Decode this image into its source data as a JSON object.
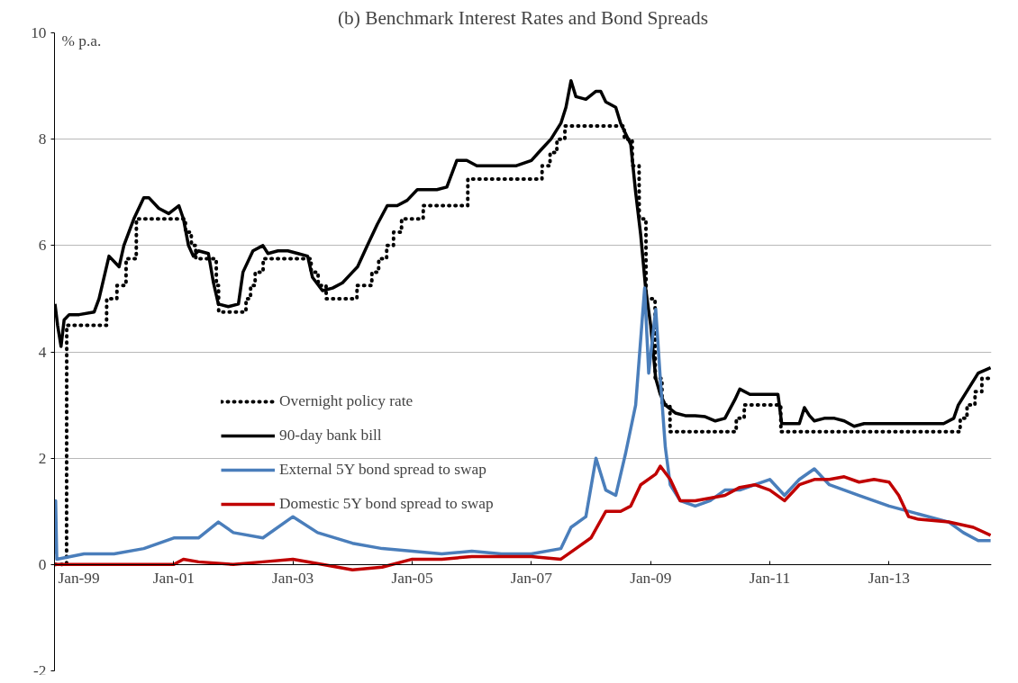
{
  "chart_data": {
    "type": "line",
    "title": "(b) Benchmark Interest Rates and Bond Spreads",
    "ylabel": "% p.a.",
    "xlim": [
      "1999-01-01",
      "2014-09-20"
    ],
    "xticks": [
      {
        "value": "1999-01-01",
        "label": "Jan-99"
      },
      {
        "value": "2001-01-01",
        "label": "Jan-01"
      },
      {
        "value": "2003-01-01",
        "label": "Jan-03"
      },
      {
        "value": "2005-01-01",
        "label": "Jan-05"
      },
      {
        "value": "2007-01-01",
        "label": "Jan-07"
      },
      {
        "value": "2009-01-01",
        "label": "Jan-09"
      },
      {
        "value": "2011-01-01",
        "label": "Jan-11"
      },
      {
        "value": "2013-01-01",
        "label": "Jan-13"
      }
    ],
    "ylim": [
      -2,
      10
    ],
    "yticks": [
      -2,
      0,
      2,
      4,
      6,
      8,
      10
    ],
    "grid": "y",
    "legend": "center",
    "series": [
      {
        "name": "Overnight policy rate",
        "color": "#000000",
        "line_style": "dotted",
        "x": [
          "1999-01-04",
          "1999-03-16",
          "1999-03-17",
          "1999-11-16",
          "1999-11-17",
          "2000-01-18",
          "2000-01-19",
          "2000-03-14",
          "2000-03-15",
          "2000-05-16",
          "2000-05-17",
          "2001-03-13",
          "2001-03-14",
          "2001-04-18",
          "2001-04-19",
          "2001-05-15",
          "2001-05-16",
          "2001-09-18",
          "2001-09-19",
          "2001-10-02",
          "2001-10-03",
          "2002-03-19",
          "2002-03-20",
          "2002-04-16",
          "2002-04-17",
          "2002-05-14",
          "2002-05-15",
          "2002-07-02",
          "2002-07-03",
          "2003-04-22",
          "2003-04-23",
          "2003-06-04",
          "2003-06-05",
          "2003-07-23",
          "2003-07-24",
          "2004-01-28",
          "2004-01-29",
          "2004-04-28",
          "2004-04-29",
          "2004-06-09",
          "2004-06-10",
          "2004-07-28",
          "2004-07-29",
          "2004-09-08",
          "2004-09-09",
          "2004-10-27",
          "2004-10-28",
          "2005-03-09",
          "2005-03-10",
          "2005-12-07",
          "2005-12-08",
          "2007-03-07",
          "2007-03-08",
          "2007-04-25",
          "2007-04-26",
          "2007-06-06",
          "2007-06-07",
          "2007-07-25",
          "2007-07-26",
          "2008-07-23",
          "2008-07-24",
          "2008-09-10",
          "2008-09-11",
          "2008-10-22",
          "2008-10-23",
          "2008-12-03",
          "2008-12-04",
          "2009-01-28",
          "2009-01-29",
          "2009-03-11",
          "2009-03-12",
          "2009-04-29",
          "2009-04-30",
          "2010-06-09",
          "2010-06-10",
          "2010-07-28",
          "2010-07-29",
          "2011-03-09",
          "2011-03-10",
          "2014-03-12",
          "2014-03-13",
          "2014-04-23",
          "2014-04-24",
          "2014-06-11",
          "2014-06-12",
          "2014-07-23",
          "2014-07-24",
          "2014-09-15"
        ],
        "values": [
          0,
          0,
          4.5,
          4.5,
          5.0,
          5.0,
          5.25,
          5.25,
          5.75,
          5.75,
          6.5,
          6.5,
          6.25,
          6.25,
          6.0,
          6.0,
          5.75,
          5.75,
          5.25,
          5.25,
          4.75,
          4.75,
          5.0,
          5.0,
          5.25,
          5.25,
          5.5,
          5.5,
          5.75,
          5.75,
          5.5,
          5.5,
          5.25,
          5.25,
          5.0,
          5.0,
          5.25,
          5.25,
          5.5,
          5.5,
          5.75,
          5.75,
          6.0,
          6.0,
          6.25,
          6.25,
          6.5,
          6.5,
          6.75,
          6.75,
          7.25,
          7.25,
          7.5,
          7.5,
          7.75,
          7.75,
          8.0,
          8.0,
          8.25,
          8.25,
          8.0,
          8.0,
          7.5,
          7.5,
          6.5,
          6.5,
          5.0,
          5.0,
          3.5,
          3.5,
          3.0,
          3.0,
          2.5,
          2.5,
          2.75,
          2.75,
          3.0,
          3.0,
          2.5,
          2.5,
          2.75,
          2.75,
          3.0,
          3.0,
          3.25,
          3.25,
          3.5,
          3.5
        ]
      },
      {
        "name": "90-day bank bill",
        "color": "#000000",
        "line_style": "solid",
        "x": [
          "1999-01-04",
          "1999-01-20",
          "1999-02-10",
          "1999-03-01",
          "1999-04-01",
          "1999-06-01",
          "1999-09-01",
          "1999-10-01",
          "1999-12-01",
          "2000-02-01",
          "2000-03-01",
          "2000-05-01",
          "2000-07-01",
          "2000-08-01",
          "2000-10-01",
          "2000-12-01",
          "2001-02-01",
          "2001-03-01",
          "2001-04-01",
          "2001-05-01",
          "2001-06-01",
          "2001-08-01",
          "2001-09-01",
          "2001-10-01",
          "2001-12-01",
          "2002-02-01",
          "2002-03-01",
          "2002-05-01",
          "2002-07-01",
          "2002-08-01",
          "2002-10-01",
          "2002-12-01",
          "2003-02-01",
          "2003-04-01",
          "2003-05-01",
          "2003-07-01",
          "2003-09-01",
          "2003-11-01",
          "2004-01-01",
          "2004-02-01",
          "2004-04-01",
          "2004-06-01",
          "2004-08-01",
          "2004-10-01",
          "2004-12-01",
          "2005-02-01",
          "2005-04-01",
          "2005-06-01",
          "2005-08-01",
          "2005-10-01",
          "2005-12-01",
          "2006-02-01",
          "2006-06-01",
          "2006-10-01",
          "2007-01-01",
          "2007-03-01",
          "2007-05-01",
          "2007-07-01",
          "2007-08-01",
          "2007-09-01",
          "2007-10-01",
          "2007-12-01",
          "2008-02-01",
          "2008-03-01",
          "2008-04-01",
          "2008-06-01",
          "2008-07-01",
          "2008-08-01",
          "2008-09-01",
          "2008-10-01",
          "2008-11-01",
          "2008-12-01",
          "2009-01-01",
          "2009-02-01",
          "2009-03-01",
          "2009-04-01",
          "2009-06-01",
          "2009-08-01",
          "2009-10-01",
          "2009-12-01",
          "2010-02-01",
          "2010-04-01",
          "2010-06-01",
          "2010-07-01",
          "2010-09-01",
          "2010-11-01",
          "2011-01-01",
          "2011-02-20",
          "2011-03-15",
          "2011-05-01",
          "2011-07-01",
          "2011-08-01",
          "2011-09-01",
          "2011-10-01",
          "2011-12-01",
          "2012-02-01",
          "2012-04-01",
          "2012-06-01",
          "2012-08-01",
          "2012-10-01",
          "2012-12-01",
          "2013-06-01",
          "2013-12-01",
          "2014-02-01",
          "2014-03-01",
          "2014-05-01",
          "2014-07-01",
          "2014-09-15"
        ],
        "values": [
          4.9,
          4.5,
          4.1,
          4.6,
          4.7,
          4.7,
          4.75,
          5.0,
          5.8,
          5.6,
          6.0,
          6.5,
          6.9,
          6.9,
          6.7,
          6.6,
          6.75,
          6.5,
          6.0,
          5.8,
          5.9,
          5.85,
          5.3,
          4.9,
          4.85,
          4.9,
          5.5,
          5.9,
          6.0,
          5.85,
          5.9,
          5.9,
          5.85,
          5.8,
          5.4,
          5.15,
          5.2,
          5.3,
          5.5,
          5.6,
          6.0,
          6.4,
          6.75,
          6.75,
          6.85,
          7.05,
          7.05,
          7.05,
          7.1,
          7.6,
          7.6,
          7.5,
          7.5,
          7.5,
          7.6,
          7.8,
          8.0,
          8.3,
          8.6,
          9.1,
          8.8,
          8.75,
          8.9,
          8.9,
          8.7,
          8.6,
          8.3,
          8.1,
          7.9,
          7.0,
          6.2,
          5.2,
          4.5,
          3.5,
          3.2,
          3.0,
          2.85,
          2.8,
          2.8,
          2.78,
          2.7,
          2.75,
          3.1,
          3.3,
          3.2,
          3.2,
          3.2,
          3.2,
          2.65,
          2.65,
          2.65,
          2.95,
          2.8,
          2.7,
          2.75,
          2.75,
          2.7,
          2.6,
          2.65,
          2.65,
          2.65,
          2.65,
          2.65,
          2.75,
          3.0,
          3.3,
          3.6,
          3.7
        ]
      },
      {
        "name": "External 5Y bond spread to swap",
        "color": "#4a7ebb",
        "line_style": "solid",
        "x": [
          "1999-01-04",
          "1999-01-08",
          "1999-01-15",
          "1999-07-01",
          "2000-01-01",
          "2000-07-01",
          "2001-01-01",
          "2001-06-01",
          "2001-10-01",
          "2002-01-01",
          "2002-07-01",
          "2003-01-01",
          "2003-06-01",
          "2004-01-01",
          "2004-07-01",
          "2005-01-01",
          "2005-07-01",
          "2006-01-01",
          "2006-07-01",
          "2007-01-01",
          "2007-07-01",
          "2007-09-01",
          "2007-12-01",
          "2008-02-01",
          "2008-04-01",
          "2008-06-01",
          "2008-08-01",
          "2008-10-01",
          "2008-11-25",
          "2008-12-20",
          "2009-02-01",
          "2009-03-01",
          "2009-04-01",
          "2009-05-01",
          "2009-07-01",
          "2009-10-01",
          "2010-01-01",
          "2010-04-01",
          "2010-07-01",
          "2010-10-01",
          "2011-01-01",
          "2011-04-01",
          "2011-07-01",
          "2011-10-01",
          "2012-01-01",
          "2012-04-01",
          "2012-07-01",
          "2013-01-01",
          "2013-07-01",
          "2014-01-01",
          "2014-04-01",
          "2014-07-01",
          "2014-09-15"
        ],
        "values": [
          0.2,
          1.2,
          0.1,
          0.2,
          0.2,
          0.3,
          0.5,
          0.5,
          0.8,
          0.6,
          0.5,
          0.9,
          0.6,
          0.4,
          0.3,
          0.25,
          0.2,
          0.25,
          0.2,
          0.2,
          0.3,
          0.7,
          0.9,
          2.0,
          1.4,
          1.3,
          2.1,
          3.0,
          5.2,
          3.6,
          4.8,
          3.5,
          2.2,
          1.5,
          1.2,
          1.1,
          1.2,
          1.4,
          1.4,
          1.5,
          1.6,
          1.3,
          1.6,
          1.8,
          1.5,
          1.4,
          1.3,
          1.1,
          0.95,
          0.8,
          0.6,
          0.45,
          0.45
        ]
      },
      {
        "name": "Domestic 5Y bond spread to swap",
        "color": "#c00000",
        "line_style": "solid",
        "x": [
          "1999-01-04",
          "2001-01-01",
          "2001-03-01",
          "2001-06-01",
          "2002-01-01",
          "2002-07-01",
          "2003-01-01",
          "2003-07-01",
          "2004-01-01",
          "2004-07-01",
          "2005-01-01",
          "2005-07-01",
          "2006-01-01",
          "2006-07-01",
          "2007-01-01",
          "2007-07-01",
          "2007-10-01",
          "2008-01-01",
          "2008-04-01",
          "2008-07-01",
          "2008-09-01",
          "2008-11-01",
          "2009-02-01",
          "2009-03-01",
          "2009-05-01",
          "2009-07-01",
          "2009-10-01",
          "2010-01-01",
          "2010-04-01",
          "2010-07-01",
          "2010-10-01",
          "2011-01-01",
          "2011-04-01",
          "2011-07-01",
          "2011-10-01",
          "2012-01-01",
          "2012-04-01",
          "2012-07-01",
          "2012-10-01",
          "2013-01-01",
          "2013-03-01",
          "2013-05-01",
          "2013-07-01",
          "2014-01-01",
          "2014-06-01",
          "2014-09-15"
        ],
        "values": [
          0,
          0,
          0.1,
          0.05,
          0.0,
          0.05,
          0.1,
          0.0,
          -0.1,
          -0.05,
          0.1,
          0.1,
          0.15,
          0.15,
          0.15,
          0.1,
          0.3,
          0.5,
          1.0,
          1.0,
          1.1,
          1.5,
          1.7,
          1.85,
          1.6,
          1.2,
          1.2,
          1.25,
          1.3,
          1.45,
          1.5,
          1.4,
          1.2,
          1.5,
          1.6,
          1.6,
          1.65,
          1.55,
          1.6,
          1.55,
          1.3,
          0.9,
          0.85,
          0.8,
          0.7,
          0.55
        ]
      }
    ]
  }
}
